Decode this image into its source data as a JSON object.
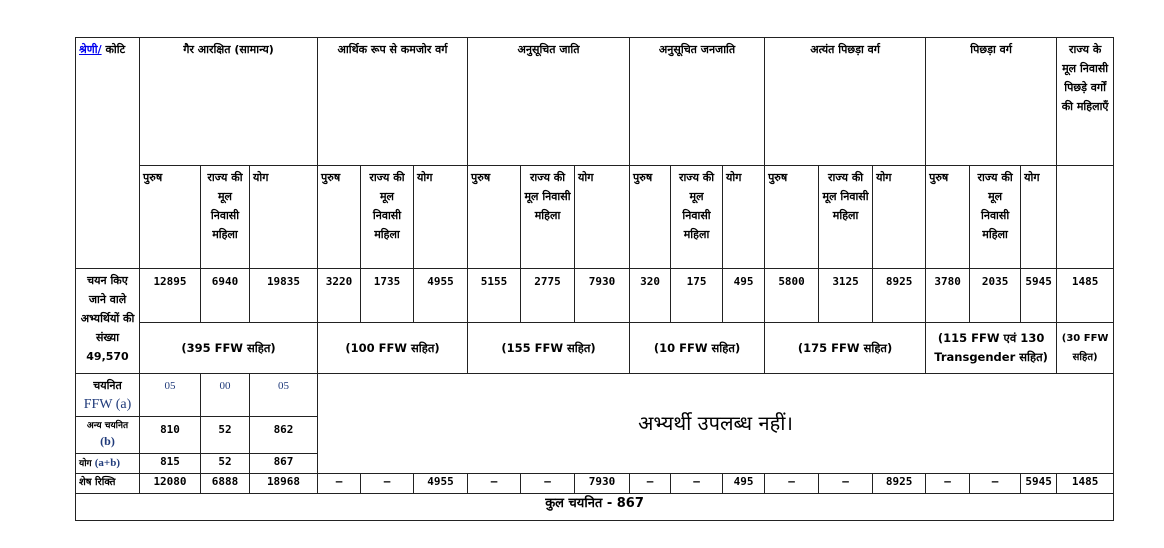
{
  "header": {
    "category_link": "श्रेणी/",
    "category_label": "कोटि",
    "groups": [
      "गैर आरक्षित (सामान्य)",
      "आर्थिक रूप से कमजोर वर्ग",
      "अनुसूचित जाति",
      "अनुसूचित जनजाति",
      "अत्यंत पिछड़ा वर्ग",
      "पिछड़ा वर्ग",
      "राज्य के मूल निवासी पिछड़े वर्गों की महिलाएँ"
    ],
    "sub": {
      "male": "पुरुष",
      "women": "राज्य की मूल निवासी महिला",
      "total": "योग"
    }
  },
  "rows": {
    "to_select": {
      "label": "चयन किए जाने वाले अभ्यर्थियों की संख्या 49,570",
      "values": [
        "12895",
        "6940",
        "19835",
        "3220",
        "1735",
        "4955",
        "5155",
        "2775",
        "7930",
        "320",
        "175",
        "495",
        "5800",
        "3125",
        "8925",
        "3780",
        "2035",
        "5945",
        "1485"
      ],
      "ffw_notes": [
        "(395 FFW सहित)",
        "(100 FFW सहित)",
        "(155 FFW सहित)",
        "(10 FFW सहित)",
        "(175 FFW सहित)",
        "(115 FFW एवं 130 Transgender सहित)",
        "(30 FFW सहित)"
      ]
    },
    "selected_ffw": {
      "label_hi": "चयनित",
      "label_en": "FFW (a)",
      "values": [
        "05",
        "00",
        "05"
      ]
    },
    "other_selected": {
      "label_hi": "अन्य चयनित",
      "label_en": "(b)",
      "values": [
        "810",
        "52",
        "862"
      ]
    },
    "sum": {
      "label_hi": "योग",
      "label_en": "(a+b)",
      "values": [
        "815",
        "52",
        "867"
      ]
    },
    "not_available": "अभ्यर्थी उपलब्ध नहीं।",
    "remaining": {
      "label": "शेष रिक्ति",
      "values": [
        "12080",
        "6888",
        "18968",
        "–",
        "–",
        "4955",
        "–",
        "–",
        "7930",
        "–",
        "–",
        "495",
        "–",
        "–",
        "8925",
        "–",
        "–",
        "5945",
        "1485"
      ]
    },
    "total_selected": "कुल चयनित - 867"
  }
}
